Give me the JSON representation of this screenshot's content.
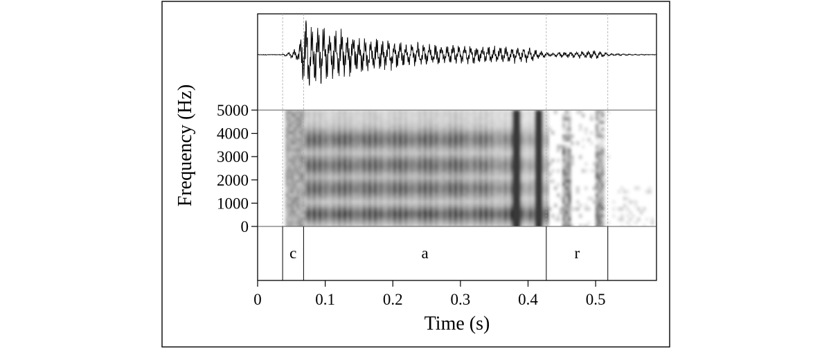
{
  "chart_data": {
    "type": "spectrogram",
    "panels": [
      "waveform",
      "spectrogram",
      "textgrid"
    ],
    "xlabel": "Time (s)",
    "ylabel": "Frequency (Hz)",
    "xlim": [
      0,
      0.59
    ],
    "ylim": [
      0,
      5000
    ],
    "x_ticks": [
      {
        "value": 0,
        "label": "0"
      },
      {
        "value": 0.1,
        "label": "0.1"
      },
      {
        "value": 0.2,
        "label": "0.2"
      },
      {
        "value": 0.3,
        "label": "0.3"
      },
      {
        "value": 0.4,
        "label": "0.4"
      },
      {
        "value": 0.5,
        "label": "0.5"
      }
    ],
    "y_ticks": [
      {
        "value": 0,
        "label": "0"
      },
      {
        "value": 1000,
        "label": "1000"
      },
      {
        "value": 2000,
        "label": "2000"
      },
      {
        "value": 3000,
        "label": "3000"
      },
      {
        "value": 4000,
        "label": "4000"
      },
      {
        "value": 5000,
        "label": "5000"
      }
    ],
    "segments": [
      {
        "label": "c",
        "start": 0.037,
        "end": 0.068
      },
      {
        "label": "a",
        "start": 0.068,
        "end": 0.427
      },
      {
        "label": "r",
        "start": 0.427,
        "end": 0.518
      }
    ],
    "waveform_envelope": {
      "times": [
        0.035,
        0.06,
        0.07,
        0.085,
        0.1,
        0.15,
        0.2,
        0.25,
        0.3,
        0.35,
        0.4,
        0.427,
        0.45,
        0.5,
        0.52,
        0.59
      ],
      "amplitude": [
        0.0,
        0.15,
        0.9,
        0.75,
        0.65,
        0.45,
        0.33,
        0.25,
        0.22,
        0.2,
        0.18,
        0.05,
        0.06,
        0.1,
        0.03,
        0.0
      ]
    },
    "formant_bands_hz": [
      600,
      1700,
      2700,
      3800
    ]
  }
}
